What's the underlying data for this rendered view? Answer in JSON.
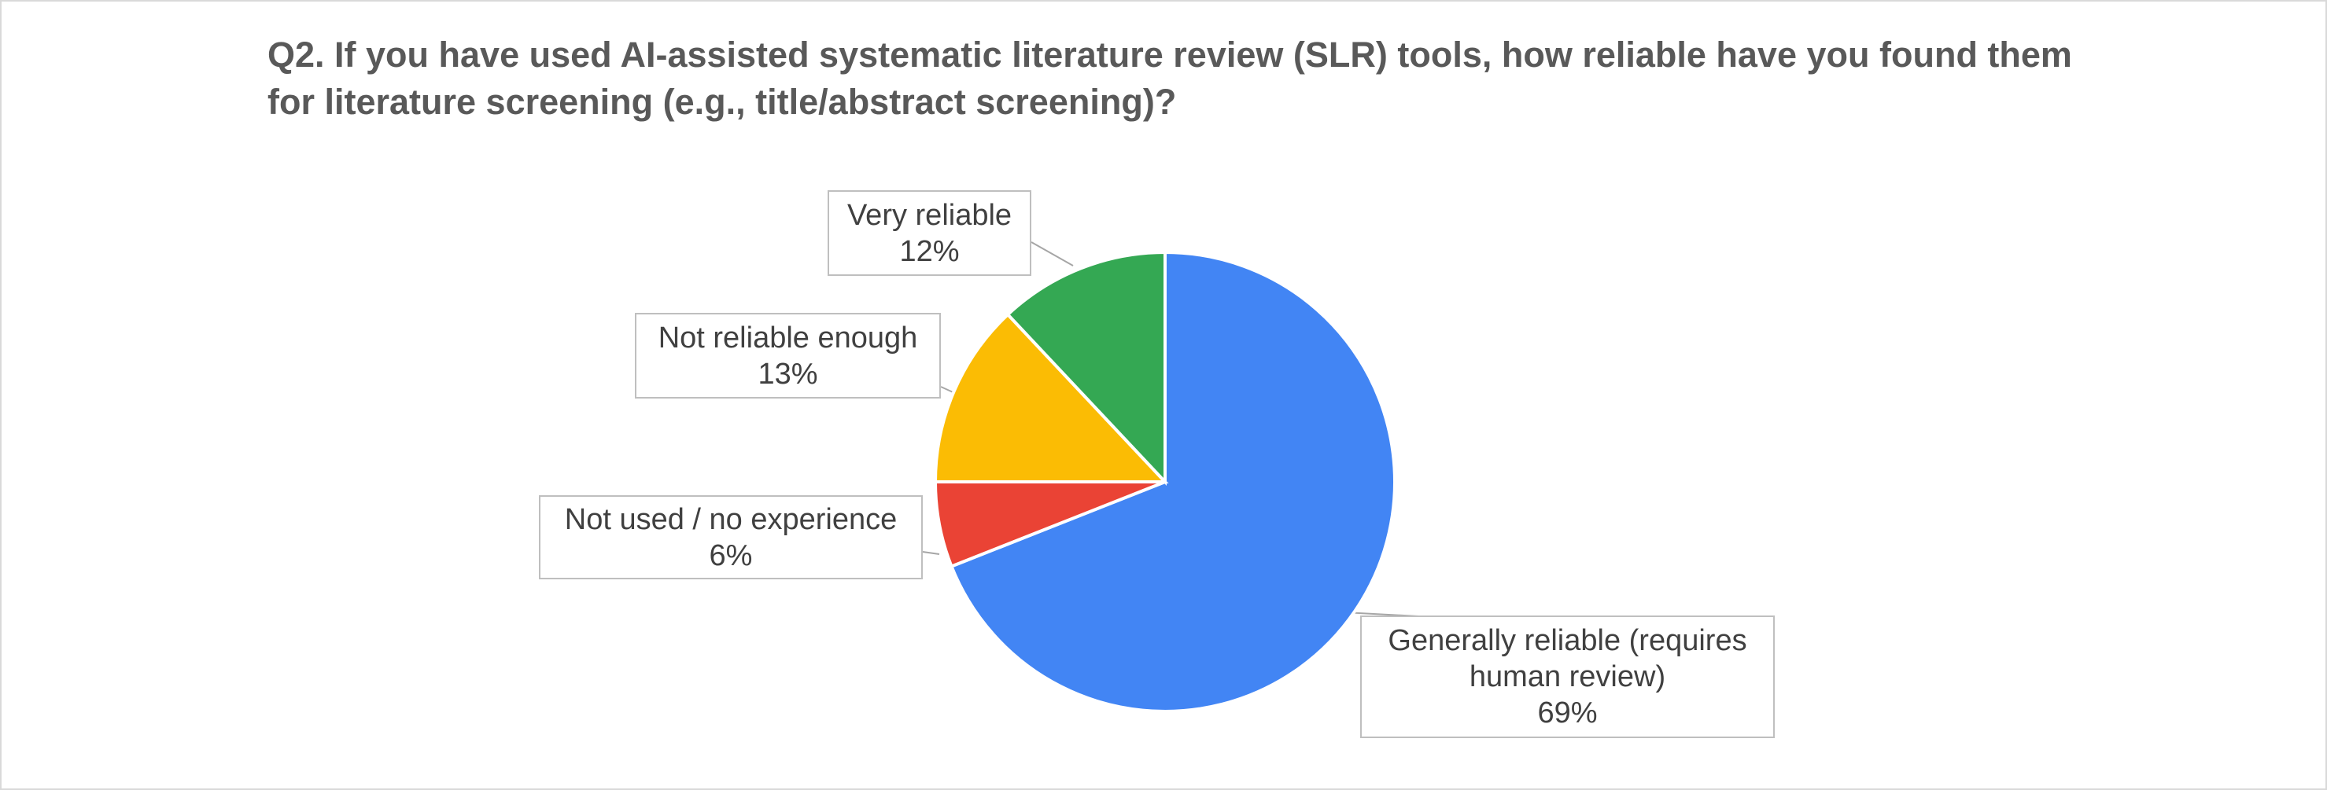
{
  "chart_data": {
    "type": "pie",
    "title": "Q2. If you have used AI-assisted systematic literature review (SLR) tools, how reliable have you found them for literature screening (e.g., title/abstract screening)?",
    "categories": [
      "Generally reliable (requires human review)",
      "Not used / no experience",
      "Not reliable enough",
      "Very reliable"
    ],
    "values": [
      69,
      6,
      13,
      12
    ],
    "value_labels": [
      "69%",
      "6%",
      "13%",
      "12%"
    ],
    "colors": [
      "#4285f4",
      "#ea4335",
      "#fbbc04",
      "#34a853"
    ]
  }
}
